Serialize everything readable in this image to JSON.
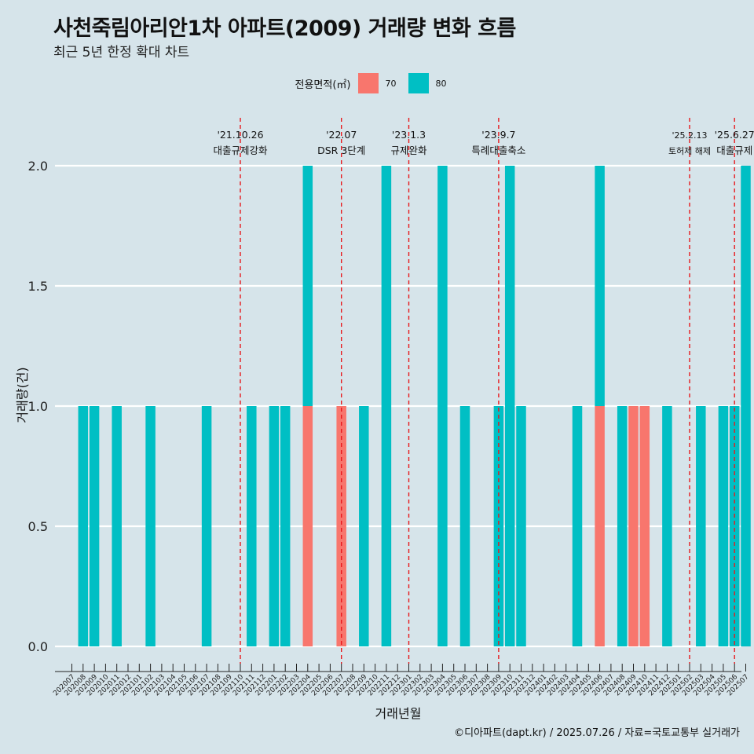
{
  "chart_data": {
    "type": "bar",
    "title": "사천죽림아리안1차 아파트(2009) 거래량 변화 흐름",
    "subtitle": "최근 5년 한정 확대 차트",
    "xlabel": "거래년월",
    "ylabel": "거래량(건)",
    "ylim": [
      0,
      2
    ],
    "yticks": [
      "0.0",
      "0.5",
      "1.0",
      "1.5",
      "2.0"
    ],
    "grid": true,
    "legend": {
      "title": "전용면적(㎡)",
      "position": "top",
      "entries": [
        {
          "label": "70",
          "color": "#f8766d"
        },
        {
          "label": "80",
          "color": "#00bfc4"
        }
      ]
    },
    "categories": [
      "202007",
      "202008",
      "202009",
      "202010",
      "202011",
      "202012",
      "202101",
      "202102",
      "202103",
      "202104",
      "202105",
      "202106",
      "202107",
      "202108",
      "202109",
      "202110",
      "202111",
      "202112",
      "202201",
      "202202",
      "202203",
      "202204",
      "202205",
      "202206",
      "202207",
      "202208",
      "202209",
      "202210",
      "202211",
      "202212",
      "202301",
      "202302",
      "202303",
      "202304",
      "202305",
      "202306",
      "202307",
      "202308",
      "202309",
      "202310",
      "202311",
      "202312",
      "202401",
      "202402",
      "202403",
      "202404",
      "202405",
      "202406",
      "202407",
      "202408",
      "202409",
      "202410",
      "202411",
      "202412",
      "202501",
      "202502",
      "202503",
      "202504",
      "202505",
      "202506",
      "202507"
    ],
    "tick_labels": [
      "202007",
      "202008",
      "202009",
      "202010",
      "202011",
      "202012",
      "202101",
      "202102",
      "202103",
      "202104",
      "202105",
      "202106",
      "202107",
      "202108",
      "202109",
      "202110",
      "202111",
      "202112",
      "202201",
      "202202",
      "202203",
      "202204",
      "202205",
      "202206",
      "202207",
      "202208",
      "202209",
      "202210",
      "202211",
      "202212",
      "202301",
      "202302",
      "202303",
      "202304",
      "202305",
      "202306",
      "202307",
      "202308",
      "202309",
      "202310",
      "202311",
      "202312",
      "202401",
      "202402",
      "202403",
      "202404",
      "202405",
      "202406",
      "202407",
      "202408",
      "202409",
      "202410",
      "202411",
      "202412",
      "202501",
      "202502",
      "202503",
      "202504",
      "202505",
      "202506",
      "202507"
    ],
    "series": [
      {
        "name": "70",
        "color": "#f8766d",
        "points": [
          {
            "x": "202204",
            "y": 1
          },
          {
            "x": "202207",
            "y": 1
          },
          {
            "x": "202406",
            "y": 1
          },
          {
            "x": "202409",
            "y": 1
          },
          {
            "x": "202410",
            "y": 1
          }
        ]
      },
      {
        "name": "80",
        "color": "#00bfc4",
        "points": [
          {
            "x": "202008",
            "y": 1
          },
          {
            "x": "202009",
            "y": 1
          },
          {
            "x": "202011",
            "y": 1
          },
          {
            "x": "202102",
            "y": 1
          },
          {
            "x": "202107",
            "y": 1
          },
          {
            "x": "202111",
            "y": 1
          },
          {
            "x": "202201",
            "y": 1
          },
          {
            "x": "202202",
            "y": 1
          },
          {
            "x": "202204",
            "y": 1
          },
          {
            "x": "202209",
            "y": 1
          },
          {
            "x": "202211",
            "y": 2
          },
          {
            "x": "202304",
            "y": 2
          },
          {
            "x": "202306",
            "y": 1
          },
          {
            "x": "202309",
            "y": 1
          },
          {
            "x": "202310",
            "y": 2
          },
          {
            "x": "202311",
            "y": 1
          },
          {
            "x": "202404",
            "y": 1
          },
          {
            "x": "202406",
            "y": 1
          },
          {
            "x": "202408",
            "y": 1
          },
          {
            "x": "202412",
            "y": 1
          },
          {
            "x": "202503",
            "y": 1
          },
          {
            "x": "202505",
            "y": 1
          },
          {
            "x": "202506",
            "y": 1
          },
          {
            "x": "202507",
            "y": 2
          }
        ]
      }
    ],
    "annotations": [
      {
        "date": "'21.10.26",
        "text": "대출규제강화",
        "x": "202110",
        "small": false
      },
      {
        "date": "'22.07",
        "text": "DSR 3단계",
        "x": "202207",
        "small": false
      },
      {
        "date": "'23.1.3",
        "text": "규제완화",
        "x": "202301",
        "small": false
      },
      {
        "date": "'23.9.7",
        "text": "특례대출축소",
        "x": "202309",
        "small": false
      },
      {
        "date": "'25.2.13",
        "text": "토허제 해제",
        "x": "202502",
        "small": true
      },
      {
        "date": "'25.6.27",
        "text": "대출규제",
        "x": "202506",
        "small": false
      }
    ]
  },
  "caption": "©디아파트(dapt.kr) / 2025.07.26 / 자료=국토교통부 실거래가"
}
